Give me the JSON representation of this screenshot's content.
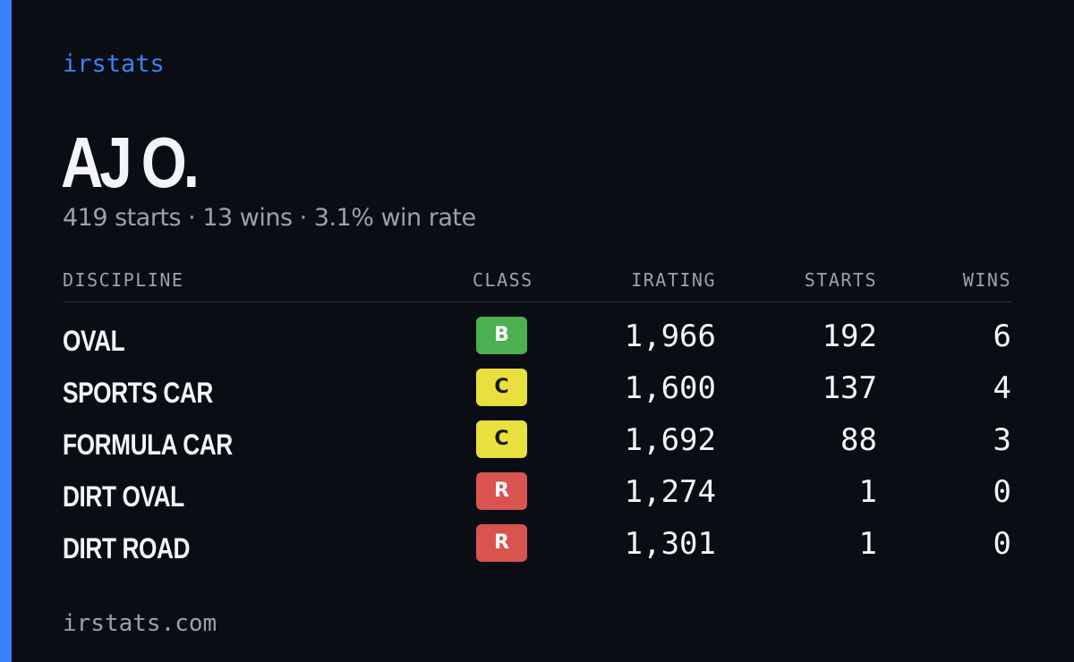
{
  "brand": "irstats",
  "driver": {
    "name": "AJ O.",
    "summary": "419 starts · 13 wins · 3.1% win rate"
  },
  "table": {
    "headers": [
      "DISCIPLINE",
      "CLASS",
      "IRATING",
      "STARTS",
      "WINS"
    ],
    "rows": [
      {
        "discipline": "OVAL",
        "class": "B",
        "class_color": "#4caf50",
        "irating": "1,966",
        "starts": "192",
        "wins": "6"
      },
      {
        "discipline": "SPORTS CAR",
        "class": "C",
        "class_color": "#e8e03c",
        "irating": "1,600",
        "starts": "137",
        "wins": "4"
      },
      {
        "discipline": "FORMULA CAR",
        "class": "C",
        "class_color": "#e8e03c",
        "irating": "1,692",
        "starts": "88",
        "wins": "3"
      },
      {
        "discipline": "DIRT OVAL",
        "class": "R",
        "class_color": "#d9534f",
        "irating": "1,274",
        "starts": "1",
        "wins": "0"
      },
      {
        "discipline": "DIRT ROAD",
        "class": "R",
        "class_color": "#d9534f",
        "irating": "1,301",
        "starts": "1",
        "wins": "0"
      }
    ]
  },
  "footer": "irstats.com"
}
